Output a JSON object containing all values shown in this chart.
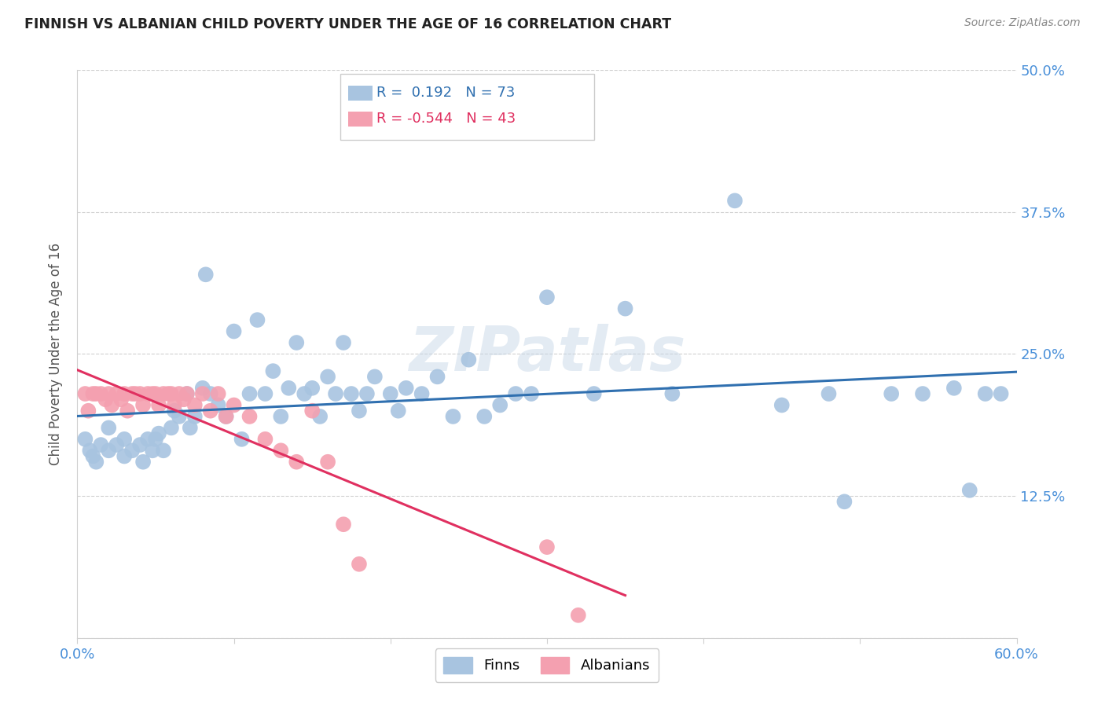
{
  "title": "FINNISH VS ALBANIAN CHILD POVERTY UNDER THE AGE OF 16 CORRELATION CHART",
  "source": "Source: ZipAtlas.com",
  "ylabel": "Child Poverty Under the Age of 16",
  "xlim": [
    0.0,
    0.6
  ],
  "ylim": [
    0.0,
    0.5
  ],
  "yticks": [
    0.0,
    0.125,
    0.25,
    0.375,
    0.5
  ],
  "ytick_labels": [
    "",
    "12.5%",
    "25.0%",
    "37.5%",
    "50.0%"
  ],
  "xticks": [
    0.0,
    0.1,
    0.2,
    0.3,
    0.4,
    0.5,
    0.6
  ],
  "xtick_labels": [
    "0.0%",
    "",
    "",
    "",
    "",
    "",
    "60.0%"
  ],
  "finns_R": 0.192,
  "finns_N": 73,
  "albanians_R": -0.544,
  "albanians_N": 43,
  "finns_color": "#a8c4e0",
  "albanians_color": "#f4a0b0",
  "trendline_finns_color": "#3070b0",
  "trendline_albanians_color": "#e03060",
  "watermark": "ZIPatlas",
  "finns_x": [
    0.005,
    0.008,
    0.01,
    0.012,
    0.015,
    0.02,
    0.02,
    0.025,
    0.03,
    0.03,
    0.035,
    0.04,
    0.042,
    0.045,
    0.048,
    0.05,
    0.052,
    0.055,
    0.06,
    0.062,
    0.065,
    0.07,
    0.072,
    0.075,
    0.08,
    0.082,
    0.085,
    0.09,
    0.095,
    0.1,
    0.105,
    0.11,
    0.115,
    0.12,
    0.125,
    0.13,
    0.135,
    0.14,
    0.145,
    0.15,
    0.155,
    0.16,
    0.165,
    0.17,
    0.175,
    0.18,
    0.185,
    0.19,
    0.2,
    0.205,
    0.21,
    0.22,
    0.23,
    0.24,
    0.25,
    0.26,
    0.27,
    0.28,
    0.29,
    0.3,
    0.33,
    0.35,
    0.38,
    0.42,
    0.45,
    0.48,
    0.49,
    0.52,
    0.54,
    0.56,
    0.57,
    0.58,
    0.59
  ],
  "finns_y": [
    0.175,
    0.165,
    0.16,
    0.155,
    0.17,
    0.185,
    0.165,
    0.17,
    0.175,
    0.16,
    0.165,
    0.17,
    0.155,
    0.175,
    0.165,
    0.175,
    0.18,
    0.165,
    0.185,
    0.2,
    0.195,
    0.215,
    0.185,
    0.195,
    0.22,
    0.32,
    0.215,
    0.205,
    0.195,
    0.27,
    0.175,
    0.215,
    0.28,
    0.215,
    0.235,
    0.195,
    0.22,
    0.26,
    0.215,
    0.22,
    0.195,
    0.23,
    0.215,
    0.26,
    0.215,
    0.2,
    0.215,
    0.23,
    0.215,
    0.2,
    0.22,
    0.215,
    0.23,
    0.195,
    0.245,
    0.195,
    0.205,
    0.215,
    0.215,
    0.3,
    0.215,
    0.29,
    0.215,
    0.385,
    0.205,
    0.215,
    0.12,
    0.215,
    0.215,
    0.22,
    0.13,
    0.215,
    0.215
  ],
  "albanians_x": [
    0.005,
    0.007,
    0.01,
    0.012,
    0.015,
    0.018,
    0.02,
    0.022,
    0.025,
    0.028,
    0.03,
    0.032,
    0.035,
    0.037,
    0.04,
    0.042,
    0.045,
    0.048,
    0.05,
    0.052,
    0.055,
    0.058,
    0.06,
    0.062,
    0.065,
    0.068,
    0.07,
    0.075,
    0.08,
    0.085,
    0.09,
    0.095,
    0.1,
    0.11,
    0.12,
    0.13,
    0.14,
    0.15,
    0.16,
    0.17,
    0.18,
    0.3,
    0.32
  ],
  "albanians_y": [
    0.215,
    0.2,
    0.215,
    0.215,
    0.215,
    0.21,
    0.215,
    0.205,
    0.215,
    0.21,
    0.215,
    0.2,
    0.215,
    0.215,
    0.215,
    0.205,
    0.215,
    0.215,
    0.215,
    0.205,
    0.215,
    0.215,
    0.215,
    0.205,
    0.215,
    0.21,
    0.215,
    0.205,
    0.215,
    0.2,
    0.215,
    0.195,
    0.205,
    0.195,
    0.175,
    0.165,
    0.155,
    0.2,
    0.155,
    0.1,
    0.065,
    0.08,
    0.02
  ],
  "albanians_trendline_xmax": 0.35
}
